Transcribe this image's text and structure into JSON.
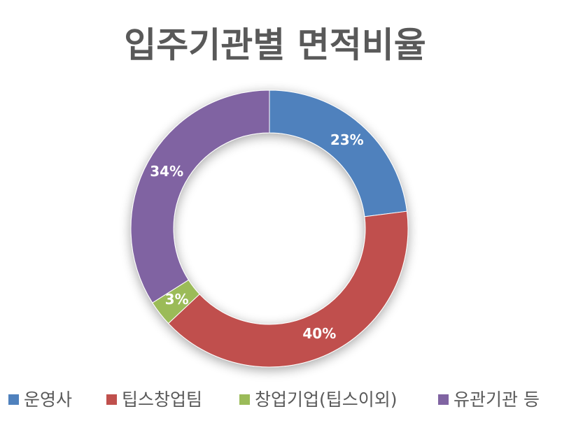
{
  "chart_data": {
    "type": "donut",
    "title": "입주기관별 면적비율",
    "categories": [
      "운영사",
      "팁스창업팀",
      "창업기업(팁스이외)",
      "유관기관 등"
    ],
    "values": [
      23,
      40,
      3,
      34
    ],
    "value_labels": [
      "23%",
      "40%",
      "3%",
      "34%"
    ],
    "colors": [
      "#4f81bd",
      "#c0504d",
      "#9bbb59",
      "#8064a2"
    ],
    "legend": "bottom"
  }
}
